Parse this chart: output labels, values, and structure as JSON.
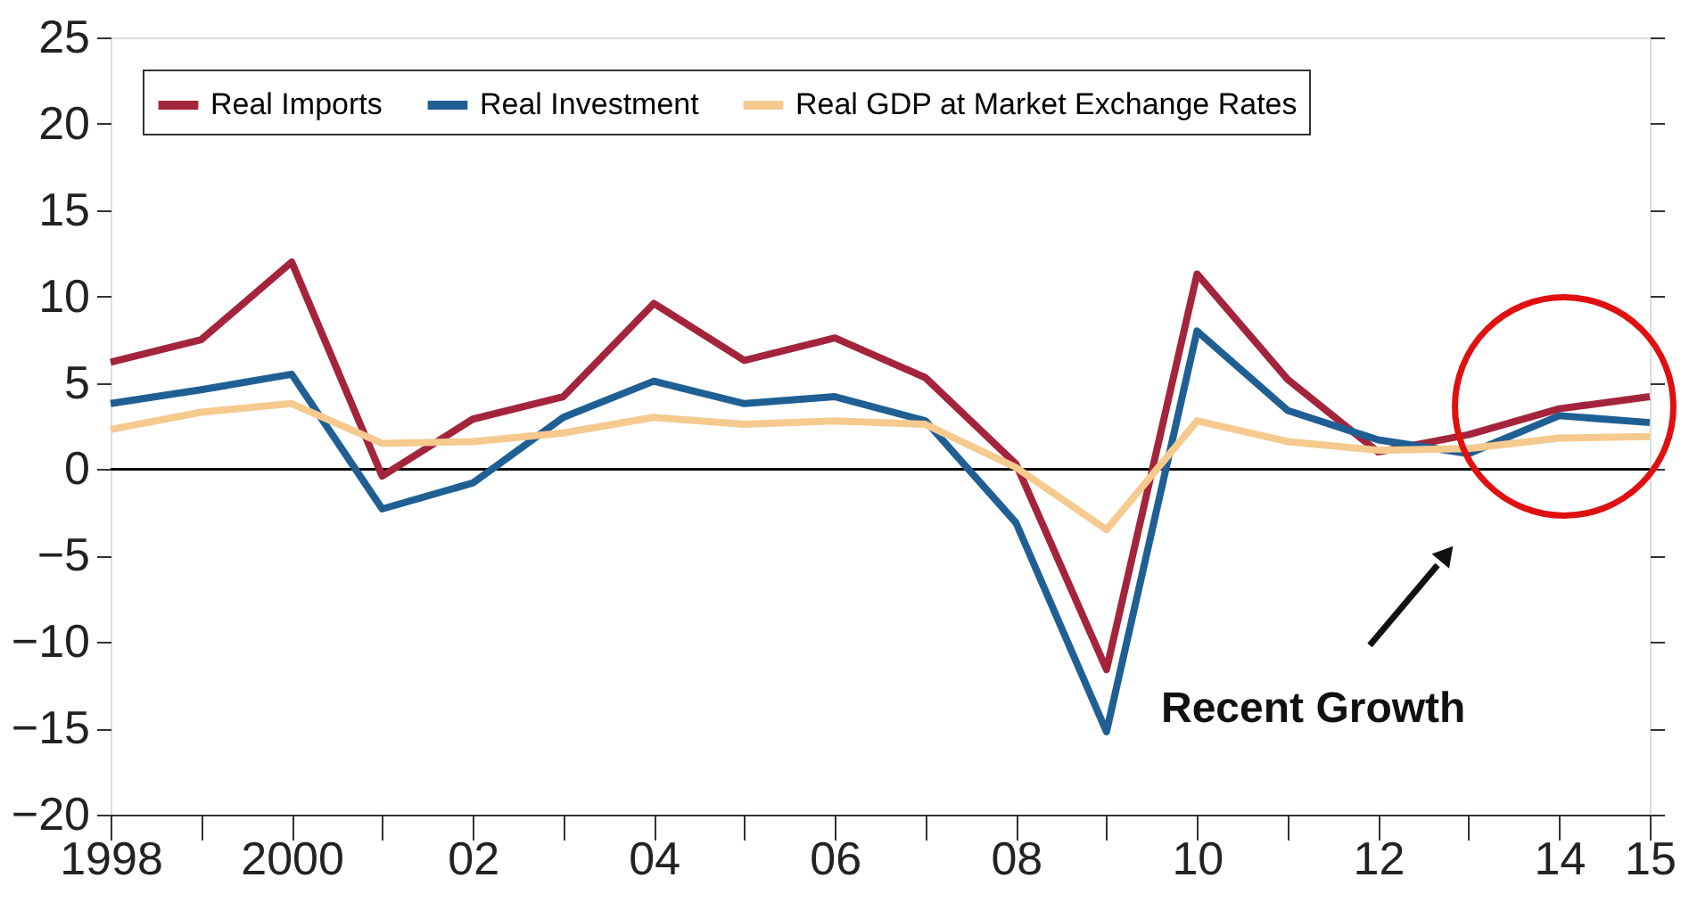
{
  "chart_data": {
    "type": "line",
    "x": [
      1998,
      1999,
      2000,
      2001,
      2002,
      2003,
      2004,
      2005,
      2006,
      2007,
      2008,
      2009,
      2010,
      2011,
      2012,
      2013,
      2014,
      2015
    ],
    "series": [
      {
        "name": "Real Imports",
        "color": "#a3243b",
        "values": [
          6.2,
          7.5,
          12,
          -0.4,
          2.9,
          4.2,
          9.6,
          6.3,
          7.6,
          5.3,
          0.3,
          -11.6,
          11.3,
          5.2,
          1,
          2,
          3.5,
          4.2
        ]
      },
      {
        "name": "Real Investment",
        "color": "#1f5f94",
        "values": [
          3.8,
          4.6,
          5.5,
          -2.3,
          -0.8,
          3,
          5.1,
          3.8,
          4.2,
          2.8,
          -3.1,
          -15.2,
          8,
          3.4,
          1.7,
          0.9,
          3.1,
          2.7
        ]
      },
      {
        "name": "Real GDP at Market Exchange Rates",
        "color": "#f6c98f",
        "values": [
          2.3,
          3.3,
          3.8,
          1.5,
          1.6,
          2.1,
          3,
          2.6,
          2.8,
          2.6,
          0.1,
          -3.5,
          2.8,
          1.6,
          1.1,
          1.2,
          1.8,
          1.9
        ]
      }
    ],
    "xlim": [
      1998,
      2015
    ],
    "xticks": [
      1998,
      {
        "value": 1999,
        "label": null
      },
      2000,
      {
        "value": 2001,
        "label": null
      },
      {
        "value": 2002,
        "label": "02"
      },
      {
        "value": 2003,
        "label": null
      },
      {
        "value": 2004,
        "label": "04"
      },
      {
        "value": 2005,
        "label": null
      },
      {
        "value": 2006,
        "label": "06"
      },
      {
        "value": 2007,
        "label": null
      },
      {
        "value": 2008,
        "label": "08"
      },
      {
        "value": 2009,
        "label": null
      },
      {
        "value": 2010,
        "label": "10"
      },
      {
        "value": 2011,
        "label": null
      },
      {
        "value": 2012,
        "label": "12"
      },
      {
        "value": 2013,
        "label": null
      },
      {
        "value": 2014,
        "label": "14"
      },
      {
        "value": 2015,
        "label": "15"
      }
    ],
    "ylim": [
      -20,
      25
    ],
    "yticks": [
      -20,
      -15,
      -10,
      -5,
      0,
      5,
      10,
      15,
      20,
      25
    ],
    "ref_lines": [
      {
        "axis": "y",
        "value": 0,
        "color": "#000000"
      }
    ],
    "annotations": [
      "Recent Growth"
    ],
    "legend": "top left",
    "grid": false,
    "marker": "none",
    "line_style": "solid"
  }
}
